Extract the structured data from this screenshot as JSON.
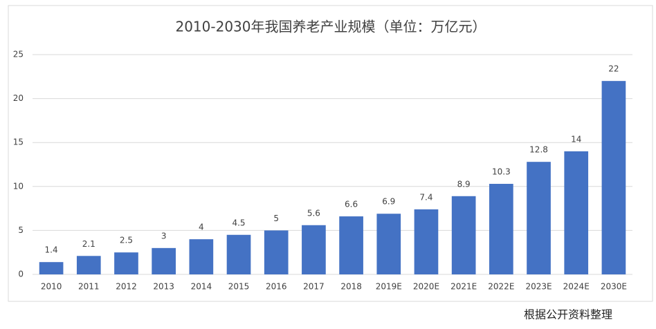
{
  "chart_data": {
    "type": "bar",
    "title": "2010-2030年我国养老产业规模（单位：万亿元）",
    "categories": [
      "2010",
      "2011",
      "2012",
      "2013",
      "2014",
      "2015",
      "2016",
      "2017",
      "2018",
      "2019E",
      "2020E",
      "2021E",
      "2022E",
      "2023E",
      "2024E",
      "2030E"
    ],
    "values": [
      1.4,
      2.1,
      2.5,
      3,
      4,
      4.5,
      5,
      5.6,
      6.6,
      6.9,
      7.4,
      8.9,
      10.3,
      12.8,
      14,
      22
    ],
    "color": "#4472c4",
    "ylim": [
      0,
      25
    ],
    "yticks": [
      0,
      5,
      10,
      15,
      20,
      25
    ],
    "grid": true,
    "source": "根据公开资料整理"
  }
}
